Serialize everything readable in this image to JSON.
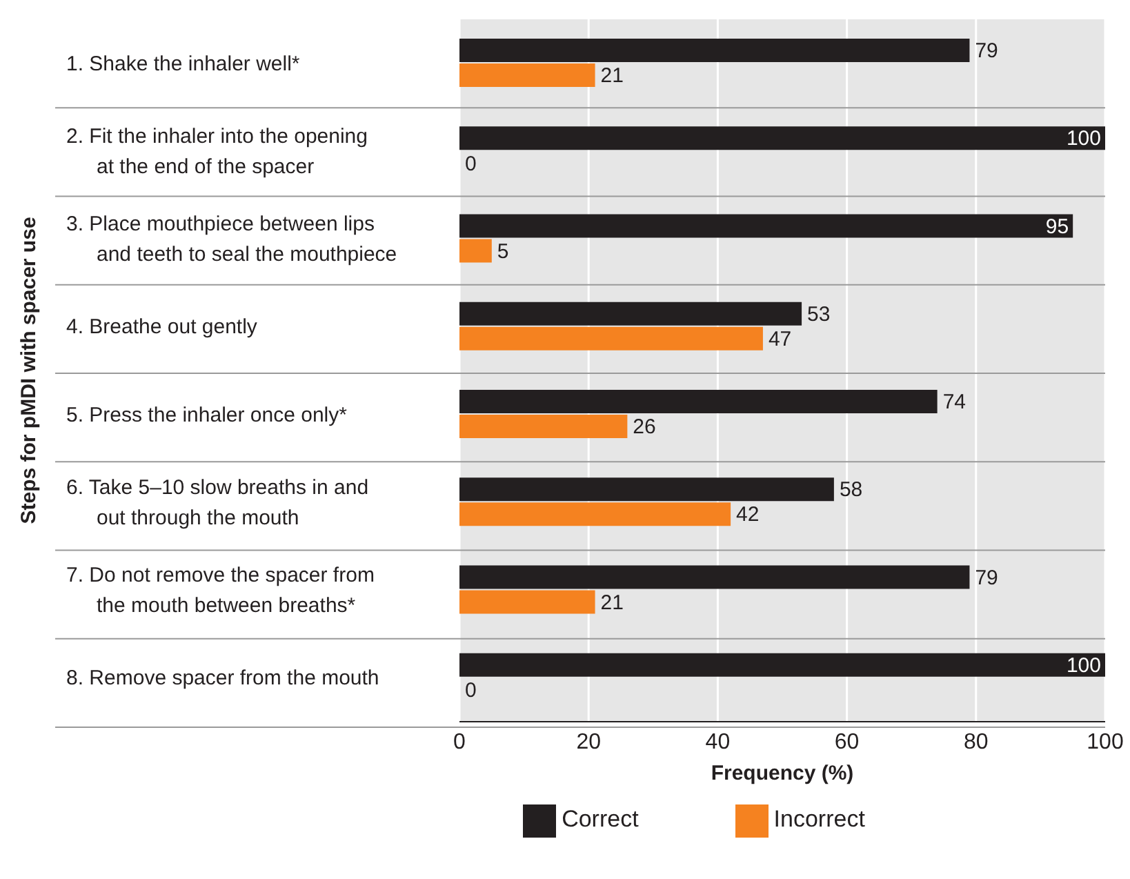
{
  "chart_data": {
    "type": "bar",
    "orientation": "horizontal",
    "xlabel": "Frequency (%)",
    "ylabel": "Steps for pMDI with spacer use",
    "categories": [
      "1. Shake the inhaler well*",
      "2. Fit the inhaler into the opening at the end of the spacer",
      "3. Place mouthpiece between lips and teeth to seal the mouthpiece",
      "4. Breathe out gently",
      "5. Press the inhaler once only*",
      "6. Take 5–10 slow breaths in and out through the mouth",
      "7. Do not remove the spacer from the mouth between breaths*",
      "8. Remove spacer from the mouth"
    ],
    "series": [
      {
        "name": "Correct",
        "color": "#231f20",
        "values": [
          79,
          100,
          95,
          53,
          74,
          58,
          79,
          100
        ]
      },
      {
        "name": "Incorrect",
        "color": "#f58220",
        "values": [
          21,
          0,
          5,
          47,
          26,
          42,
          21,
          0
        ]
      }
    ],
    "xlim": [
      0,
      100
    ],
    "xticks": [
      0,
      20,
      40,
      60,
      80,
      100
    ],
    "grid": "x",
    "legend": "bottom",
    "data_labels": true
  }
}
